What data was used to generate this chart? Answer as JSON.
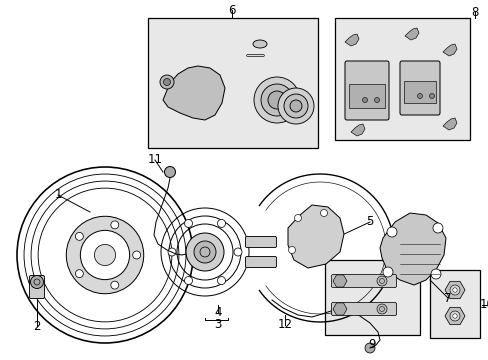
{
  "bg_color": "#ffffff",
  "line_color": "#000000",
  "box_fill": "#e8e8e8",
  "lw": 0.9,
  "figsize": [
    4.89,
    3.6
  ],
  "dpi": 100
}
